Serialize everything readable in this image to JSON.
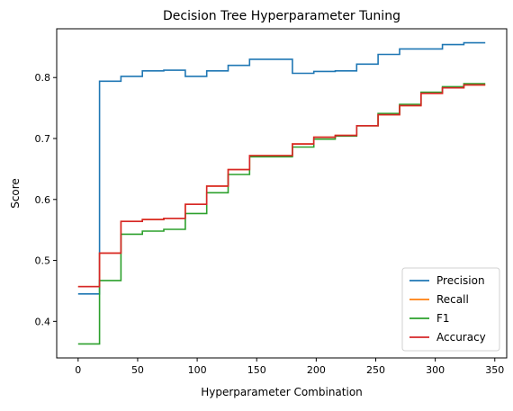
{
  "chart_data": {
    "type": "line",
    "title": "Decision Tree Hyperparameter Tuning",
    "xlabel": "Hyperparameter Combination",
    "ylabel": "Score",
    "xlim": [
      -18,
      360
    ],
    "ylim": [
      0.34,
      0.88
    ],
    "xticks": [
      0,
      50,
      100,
      150,
      200,
      250,
      300,
      350
    ],
    "yticks": [
      0.4,
      0.5,
      0.6,
      0.7,
      0.8
    ],
    "grid": false,
    "legend_position": "lower-right",
    "steps": [
      0,
      18,
      36,
      54,
      72,
      90,
      108,
      126,
      144,
      162,
      180,
      198,
      216,
      234,
      252,
      270,
      288,
      306,
      324,
      342
    ],
    "series": [
      {
        "name": "Precision",
        "color": "#1f77b4",
        "values": [
          0.445,
          0.794,
          0.802,
          0.811,
          0.812,
          0.802,
          0.811,
          0.82,
          0.83,
          0.83,
          0.807,
          0.81,
          0.811,
          0.822,
          0.838,
          0.847,
          0.847,
          0.854,
          0.857,
          0.857
        ]
      },
      {
        "name": "Recall",
        "color": "#ff7f0e",
        "values": [
          0.457,
          0.512,
          0.564,
          0.567,
          0.569,
          0.592,
          0.622,
          0.649,
          0.672,
          0.672,
          0.691,
          0.702,
          0.705,
          0.721,
          0.739,
          0.754,
          0.774,
          0.783,
          0.788,
          0.788
        ]
      },
      {
        "name": "F1",
        "color": "#2ca02c",
        "values": [
          0.363,
          0.467,
          0.543,
          0.548,
          0.551,
          0.577,
          0.611,
          0.641,
          0.67,
          0.67,
          0.686,
          0.699,
          0.704,
          0.721,
          0.741,
          0.756,
          0.776,
          0.785,
          0.79,
          0.79
        ]
      },
      {
        "name": "Accuracy",
        "color": "#d62728",
        "values": [
          0.457,
          0.512,
          0.564,
          0.567,
          0.569,
          0.592,
          0.622,
          0.649,
          0.672,
          0.672,
          0.691,
          0.702,
          0.705,
          0.721,
          0.739,
          0.754,
          0.774,
          0.783,
          0.788,
          0.788
        ]
      }
    ]
  }
}
